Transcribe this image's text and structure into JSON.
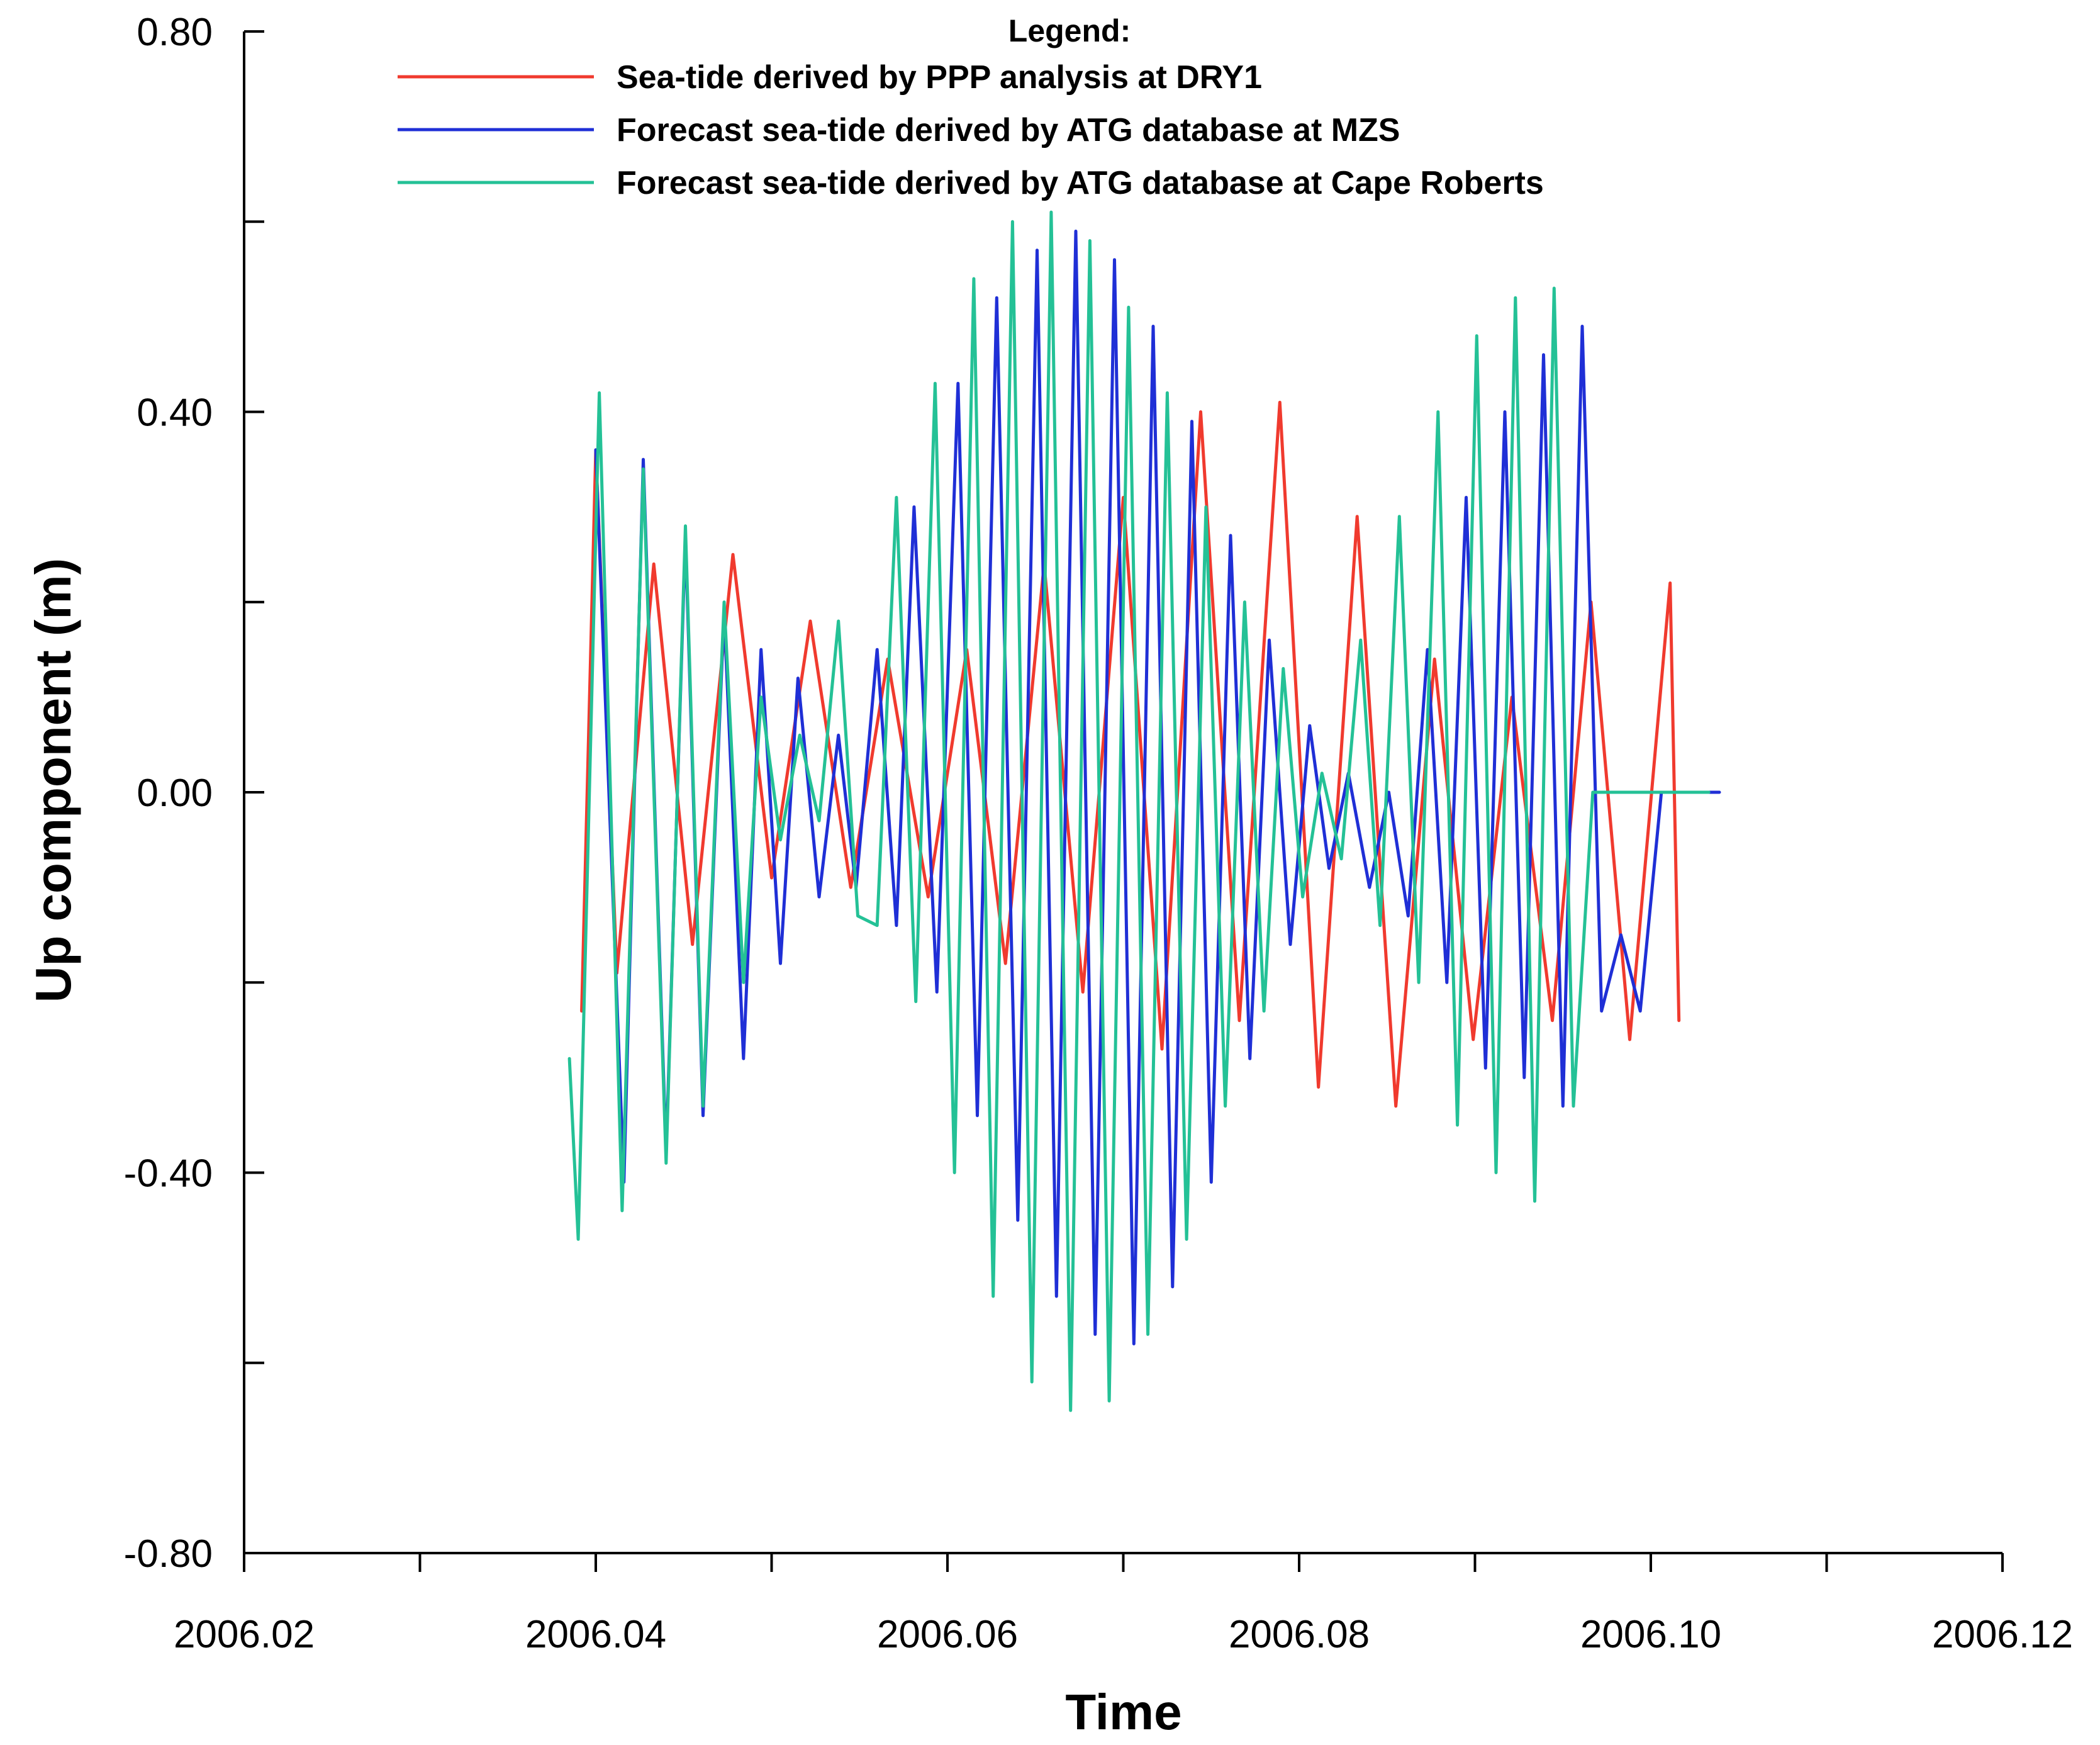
{
  "chart_data": {
    "type": "line",
    "title": "",
    "xlabel": "Time",
    "ylabel": "Up component (m)",
    "xlim": [
      2006.02,
      2006.12
    ],
    "ylim": [
      -0.8,
      0.8
    ],
    "x_ticks": [
      2006.02,
      2006.03,
      2006.04,
      2006.05,
      2006.06,
      2006.07,
      2006.08,
      2006.09,
      2006.1,
      2006.11,
      2006.12
    ],
    "x_tick_labels": [
      "2006.02",
      "",
      "2006.04",
      "",
      "2006.06",
      "",
      "2006.08",
      "",
      "2006.10",
      "",
      "2006.12"
    ],
    "y_ticks": [
      -0.8,
      -0.6,
      -0.4,
      -0.2,
      0.0,
      0.2,
      0.4,
      0.6,
      0.8
    ],
    "y_tick_labels": [
      "-0.80",
      "",
      "-0.40",
      "",
      "0.00",
      "",
      "0.40",
      "",
      "0.80"
    ],
    "legend_title": "Legend:",
    "legend_position": "top-center",
    "series": [
      {
        "name": "Sea-tide derived by PPP analysis at DRY1",
        "color": "#f03a2e",
        "x": [
          2006.0392,
          2006.04,
          2006.0412,
          2006.0433,
          2006.0455,
          2006.0478,
          2006.05,
          2006.0522,
          2006.0545,
          2006.0566,
          2006.0589,
          2006.0611,
          2006.0633,
          2006.0655,
          2006.0677,
          2006.07,
          2006.0722,
          2006.0744,
          2006.0766,
          2006.0789,
          2006.0811,
          2006.0833,
          2006.0855,
          2006.0877,
          2006.0899,
          2006.0921,
          2006.0944,
          2006.0966,
          2006.0988,
          2006.1011,
          2006.1016
        ],
        "y": [
          -0.23,
          0.36,
          -0.19,
          0.24,
          -0.16,
          0.25,
          -0.09,
          0.18,
          -0.1,
          0.14,
          -0.11,
          0.15,
          -0.18,
          0.24,
          -0.21,
          0.31,
          -0.27,
          0.4,
          -0.24,
          0.41,
          -0.31,
          0.29,
          -0.33,
          0.14,
          -0.26,
          0.1,
          -0.24,
          0.2,
          -0.26,
          0.22,
          -0.24
        ]
      },
      {
        "name": "Forecast sea-tide derived by ATG database at MZS",
        "color": "#1f2fd6",
        "x": [
          2006.04,
          2006.0416,
          2006.0427,
          2006.044,
          2006.0451,
          2006.0461,
          2006.0473,
          2006.0484,
          2006.0494,
          2006.0505,
          2006.0515,
          2006.0527,
          2006.0538,
          2006.0548,
          2006.056,
          2006.0571,
          2006.0581,
          2006.0594,
          2006.0606,
          2006.0617,
          2006.0628,
          2006.064,
          2006.0651,
          2006.0662,
          2006.0673,
          2006.0684,
          2006.0695,
          2006.0706,
          2006.0717,
          2006.0728,
          2006.0739,
          2006.075,
          2006.0761,
          2006.0772,
          2006.0783,
          2006.0795,
          2006.0806,
          2006.0817,
          2006.0828,
          2006.084,
          2006.0851,
          2006.0862,
          2006.0873,
          2006.0884,
          2006.0895,
          2006.0906,
          2006.0917,
          2006.0928,
          2006.0939,
          2006.095,
          2006.0961,
          2006.0972,
          2006.0983,
          2006.0994,
          2006.1006,
          2006.1017,
          2006.1028,
          2006.1039,
          2006.105,
          2006.1061,
          2006.1067
        ],
        "y": [
          0.36,
          -0.41,
          0.35,
          -0.38,
          0.27,
          -0.34,
          0.19,
          -0.28,
          0.15,
          -0.18,
          0.12,
          -0.11,
          0.06,
          -0.1,
          0.15,
          -0.14,
          0.3,
          -0.21,
          0.43,
          -0.34,
          0.52,
          -0.45,
          0.57,
          -0.53,
          0.59,
          -0.57,
          0.56,
          -0.58,
          0.49,
          -0.52,
          0.39,
          -0.41,
          0.27,
          -0.28,
          0.16,
          -0.16,
          0.07,
          -0.08,
          0.02,
          -0.1,
          0.0,
          -0.13,
          0.15,
          -0.2,
          0.31,
          -0.29,
          0.4,
          -0.3,
          0.46,
          -0.33,
          0.49,
          -0.23,
          -0.15,
          -0.23,
          0.0,
          0.0,
          0.0,
          0.0,
          0.0,
          0.0,
          0.0
        ]
      },
      {
        "name": "Forecast sea-tide derived by ATG database at Cape Roberts",
        "color": "#24c196",
        "x": [
          2006.0385,
          2006.039,
          2006.0402,
          2006.0415,
          2006.0427,
          2006.044,
          2006.0451,
          2006.0461,
          2006.0473,
          2006.0484,
          2006.0494,
          2006.0505,
          2006.0516,
          2006.0527,
          2006.0538,
          2006.0549,
          2006.056,
          2006.0571,
          2006.0582,
          2006.0593,
          2006.0604,
          2006.0615,
          2006.0626,
          2006.0637,
          2006.0648,
          2006.0659,
          2006.067,
          2006.0681,
          2006.0692,
          2006.0703,
          2006.0714,
          2006.0725,
          2006.0736,
          2006.0747,
          2006.0758,
          2006.0769,
          2006.078,
          2006.0791,
          2006.0802,
          2006.0813,
          2006.0824,
          2006.0835,
          2006.0846,
          2006.0857,
          2006.0868,
          2006.0879,
          2006.089,
          2006.0901,
          2006.0912,
          2006.0923,
          2006.0934,
          2006.0945,
          2006.0956,
          2006.0967,
          2006.0978,
          2006.0989,
          2006.1,
          2006.1011,
          2006.1022,
          2006.1033,
          2006.1044,
          2006.1055,
          2006.1066,
          2006.1068
        ],
        "y": [
          -0.28,
          -0.47,
          0.42,
          -0.44,
          0.34,
          -0.39,
          0.28,
          -0.33,
          0.2,
          -0.2,
          0.1,
          -0.05,
          0.06,
          -0.03,
          0.18,
          -0.13,
          -0.14,
          0.31,
          -0.22,
          0.43,
          -0.4,
          0.54,
          -0.53,
          0.6,
          -0.62,
          0.61,
          -0.65,
          0.58,
          -0.64,
          0.51,
          -0.57,
          0.42,
          -0.47,
          0.3,
          -0.33,
          0.2,
          -0.23,
          0.13,
          -0.11,
          0.02,
          -0.07,
          0.16,
          -0.14,
          0.29,
          -0.2,
          0.4,
          -0.35,
          0.48,
          -0.4,
          0.52,
          -0.43,
          0.53,
          -0.33,
          0.0,
          0.0,
          0.0,
          0.0,
          0.0,
          0.0,
          0.0,
          0.0,
          0.0,
          0.0,
          0.0
        ]
      }
    ]
  }
}
